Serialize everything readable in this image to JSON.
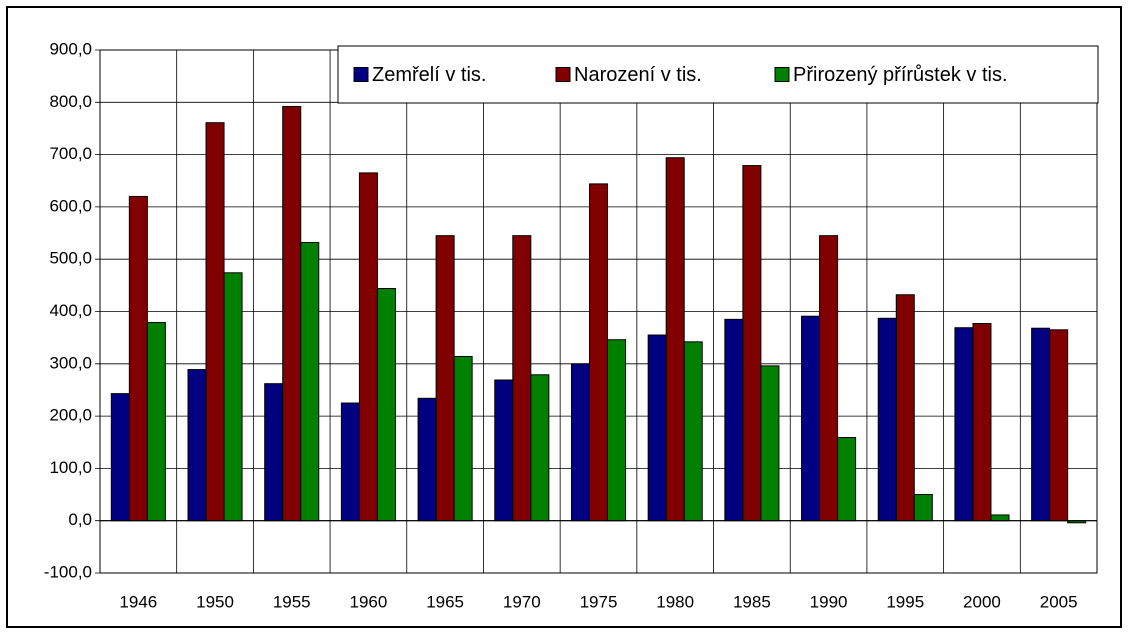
{
  "chart_data": {
    "type": "bar",
    "categories": [
      "1946",
      "1950",
      "1955",
      "1960",
      "1965",
      "1970",
      "1975",
      "1980",
      "1985",
      "1990",
      "1995",
      "2000",
      "2005"
    ],
    "series": [
      {
        "name": "Zemřelí v tis.",
        "color": "#000080",
        "values": [
          243,
          289,
          262,
          225,
          234,
          269,
          300,
          355,
          385,
          391,
          387,
          369,
          368
        ]
      },
      {
        "name": "Narození v tis.",
        "color": "#800000",
        "values": [
          620,
          761,
          792,
          665,
          545,
          545,
          644,
          694,
          679,
          545,
          432,
          377,
          365
        ]
      },
      {
        "name": "Přirozený přírůstek v tis.",
        "color": "#008000",
        "values": [
          379,
          474,
          532,
          444,
          314,
          279,
          346,
          342,
          296,
          159,
          50,
          11,
          -4
        ]
      }
    ],
    "ylim": [
      -100,
      900
    ],
    "yticks": [
      {
        "value": -100,
        "label": "-100,0"
      },
      {
        "value": 0,
        "label": "0,0"
      },
      {
        "value": 100,
        "label": "100,0"
      },
      {
        "value": 200,
        "label": "200,0"
      },
      {
        "value": 300,
        "label": "300,0"
      },
      {
        "value": 400,
        "label": "400,0"
      },
      {
        "value": 500,
        "label": "500,0"
      },
      {
        "value": 600,
        "label": "600,0"
      },
      {
        "value": 700,
        "label": "700,0"
      },
      {
        "value": 800,
        "label": "800,0"
      },
      {
        "value": 900,
        "label": "900,0"
      }
    ],
    "grid": true,
    "legend": "top-right"
  }
}
